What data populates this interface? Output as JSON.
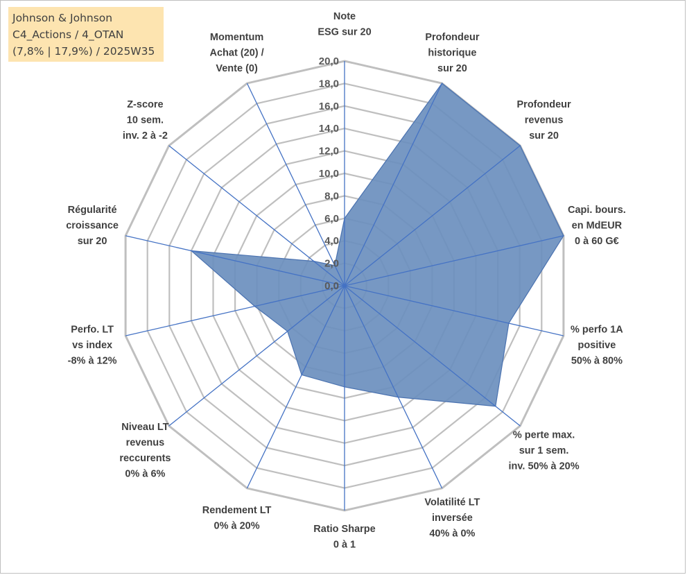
{
  "header": {
    "lines": [
      "Johnson & Johnson",
      "C4_Actions / 4_OTAN",
      "(7,8% | 17,9%) / 2025W35"
    ]
  },
  "chart_data": {
    "type": "radar",
    "range": [
      0,
      20
    ],
    "tick_step": 2,
    "tick_labels": [
      "0,0",
      "2,0",
      "4,0",
      "6,0",
      "8,0",
      "10,0",
      "12,0",
      "14,0",
      "16,0",
      "18,0",
      "20,0"
    ],
    "grid": true,
    "colors": {
      "fill": "#6b8fbe",
      "stroke": "#4a72b0",
      "spoke": "#4472c4",
      "grid": "#bfbfbf"
    },
    "axes": [
      [
        "Note",
        "ESG sur 20"
      ],
      [
        "Profondeur",
        "historique",
        "sur 20"
      ],
      [
        "Profondeur",
        "revenus",
        "sur 20"
      ],
      [
        "Capi. bours.",
        "en MdEUR",
        "0 à 60 G€"
      ],
      [
        "% perfo 1A",
        "positive",
        "50% à 80%"
      ],
      [
        "% perte max.",
        "sur 1 sem.",
        "inv. 50% à 20%"
      ],
      [
        "Volatilité LT",
        "inversée",
        "40% à 0%"
      ],
      [
        "Ratio Sharpe",
        "0 à 1"
      ],
      [
        "Rendement LT",
        "0% à 20%"
      ],
      [
        "Niveau LT",
        "revenus",
        "reccurents",
        "0% à 6%"
      ],
      [
        "Perfo. LT",
        "vs index",
        "-8% à 12%"
      ],
      [
        "Régularité",
        "croissance",
        "sur 20"
      ],
      [
        "Z-score",
        "10 sem.",
        "inv. 2 à -2"
      ],
      [
        "Momentum",
        "Achat (20) /",
        "Vente (0)"
      ]
    ],
    "series": [
      {
        "values": [
          6,
          20,
          20,
          20,
          15,
          17.2,
          11,
          9,
          8.8,
          6.5,
          8.2,
          14,
          3.5,
          2
        ]
      }
    ]
  }
}
